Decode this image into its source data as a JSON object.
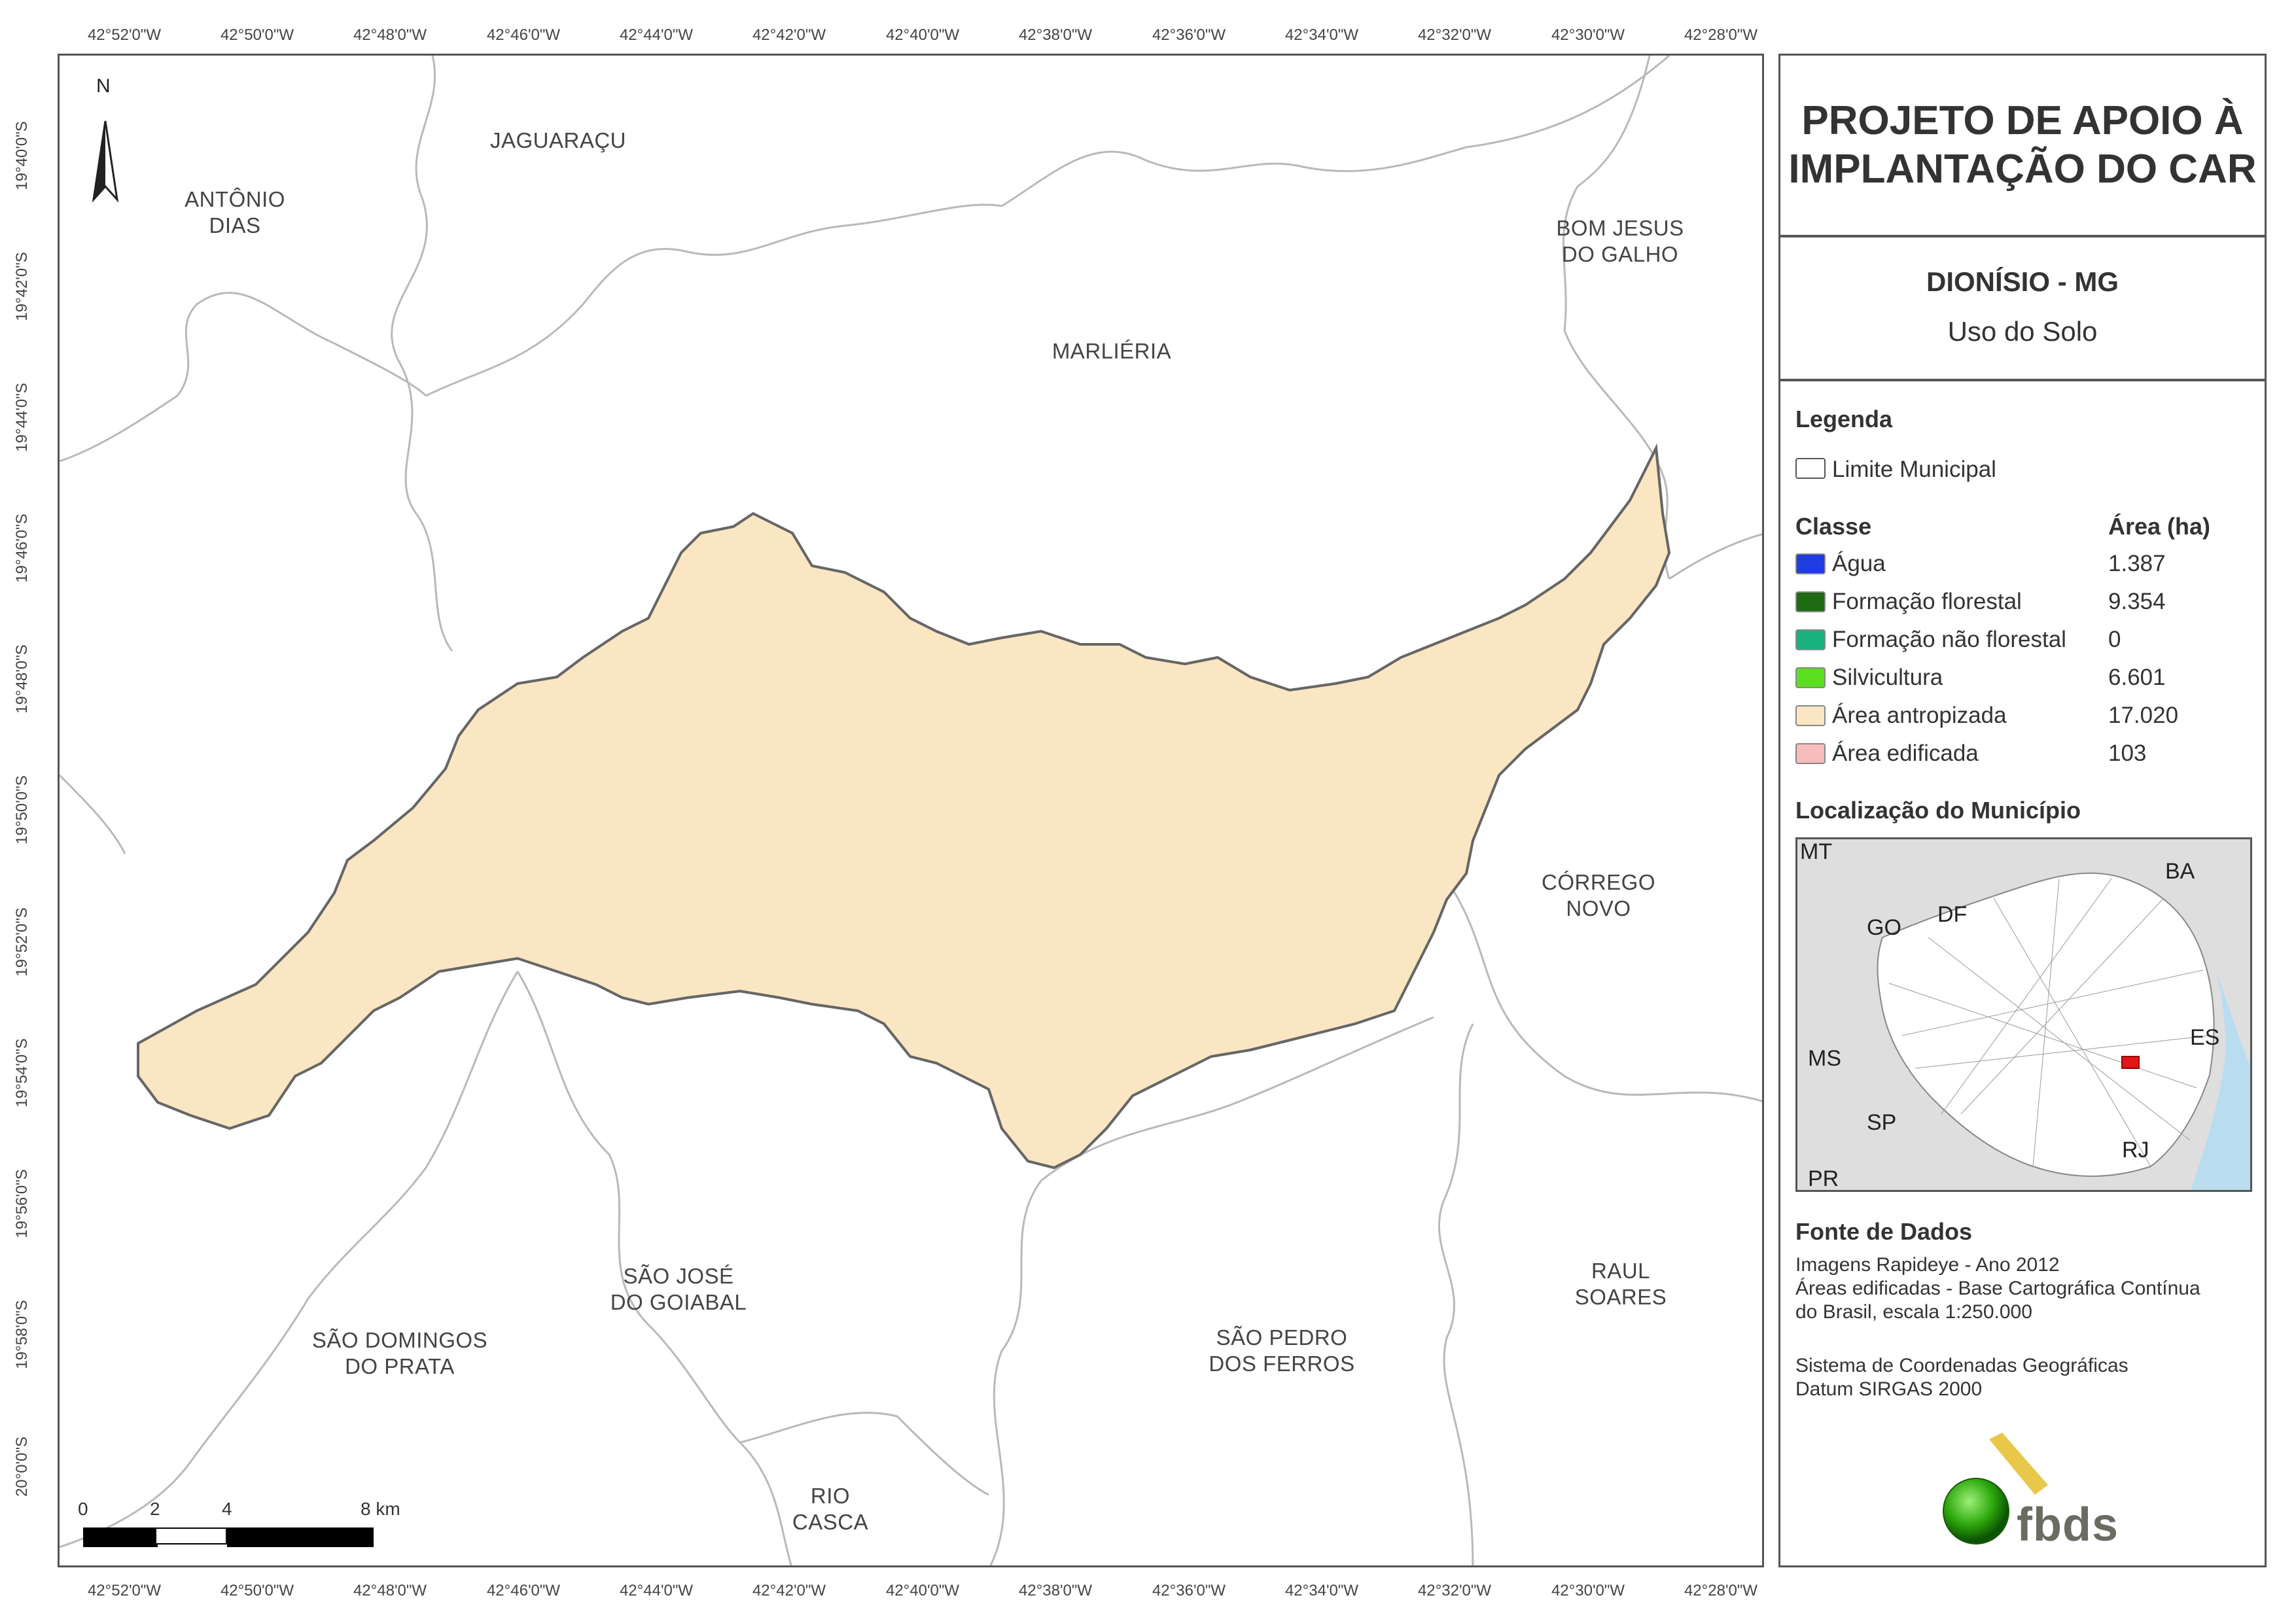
{
  "top_ticks": [
    "42°52'0\"W",
    "42°50'0\"W",
    "42°48'0\"W",
    "42°46'0\"W",
    "42°44'0\"W",
    "42°42'0\"W",
    "42°40'0\"W",
    "42°38'0\"W",
    "42°36'0\"W",
    "42°34'0\"W",
    "42°32'0\"W",
    "42°30'0\"W",
    "42°28'0\"W"
  ],
  "bottom_ticks": [
    "42°52'0\"W",
    "42°50'0\"W",
    "42°48'0\"W",
    "42°46'0\"W",
    "42°44'0\"W",
    "42°42'0\"W",
    "42°40'0\"W",
    "42°38'0\"W",
    "42°36'0\"W",
    "42°34'0\"W",
    "42°32'0\"W",
    "42°30'0\"W",
    "42°28'0\"W"
  ],
  "left_ticks": [
    "19°40'0\"S",
    "19°42'0\"S",
    "19°44'0\"S",
    "19°46'0\"S",
    "19°48'0\"S",
    "19°50'0\"S",
    "19°52'0\"S",
    "19°54'0\"S",
    "19°56'0\"S",
    "19°58'0\"S",
    "20°0'0\"S"
  ],
  "north_label": "N",
  "municipalities": [
    {
      "l1": "JAGUARAÇU",
      "l2": ""
    },
    {
      "l1": "ANTÔNIO",
      "l2": "DIAS"
    },
    {
      "l1": "BOM JESUS",
      "l2": "DO GALHO"
    },
    {
      "l1": "MARLIÉRIA",
      "l2": ""
    },
    {
      "l1": "CÓRREGO",
      "l2": "NOVO"
    },
    {
      "l1": "SÃO JOSÉ",
      "l2": "DO GOIABAL"
    },
    {
      "l1": "RAUL",
      "l2": "SOARES"
    },
    {
      "l1": "SÃO DOMINGOS",
      "l2": "DO PRATA"
    },
    {
      "l1": "SÃO PEDRO",
      "l2": "DOS FERROS"
    },
    {
      "l1": "RIO",
      "l2": "CASCA"
    }
  ],
  "scale": {
    "labels": [
      "0",
      "2",
      "4",
      "8 km"
    ],
    "unit": "km"
  },
  "panel": {
    "title_l1": "PROJETO DE APOIO À",
    "title_l2": "IMPLANTAÇÃO DO CAR",
    "place": "DIONÍSIO - MG",
    "theme": "Uso do Solo",
    "legend_header": "Legenda",
    "limit_label": "Limite Municipal",
    "class_header": "Classe",
    "area_header": "Área (ha)",
    "classes": [
      {
        "name": "Água",
        "area": "1.387",
        "color": "#1f3de0"
      },
      {
        "name": "Formação florestal",
        "area": "9.354",
        "color": "#1e6b13"
      },
      {
        "name": "Formação não florestal",
        "area": "0",
        "color": "#18b27e"
      },
      {
        "name": "Silvicultura",
        "area": "6.601",
        "color": "#5ae01e"
      },
      {
        "name": "Área antropizada",
        "area": "17.020",
        "color": "#fbe6c3"
      },
      {
        "name": "Área edificada",
        "area": "103",
        "color": "#f7bcbc"
      }
    ],
    "location_header": "Localização do Município",
    "inset_labels": [
      "MT",
      "BA",
      "GO",
      "DF",
      "MS",
      "ES",
      "SP",
      "RJ",
      "PR"
    ],
    "sources_header": "Fonte de Dados",
    "sources": [
      "Imagens Rapideye - Ano 2012",
      "Áreas edificadas - Base Cartográfica Contínua",
      "do Brasil, escala 1:250.000"
    ],
    "crs": [
      "Sistema de Coordenadas Geográficas",
      "Datum SIRGAS 2000"
    ],
    "logo_text": "fbds"
  }
}
